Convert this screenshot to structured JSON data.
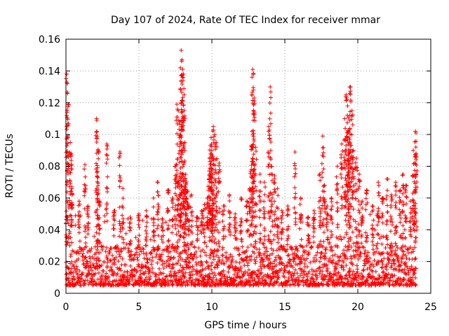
{
  "chart_data": {
    "type": "scatter",
    "title": "Day 107 of 2024, Rate Of TEC Index for receiver mmar",
    "xlabel": "GPS time / hours",
    "ylabel": "ROTI / TECUs",
    "xlim": [
      0,
      25
    ],
    "ylim": [
      0,
      0.16
    ],
    "x_ticks": [
      0,
      5,
      10,
      15,
      20,
      25
    ],
    "x_tick_labels": [
      "0",
      "5",
      "10",
      "15",
      "20",
      "25"
    ],
    "y_ticks": [
      0,
      0.02,
      0.04,
      0.06,
      0.08,
      0.1,
      0.12,
      0.14,
      0.16
    ],
    "y_tick_labels": [
      "0",
      "0.02",
      "0.04",
      "0.06",
      "0.08",
      "0.1",
      "0.12",
      "0.14",
      "0.16"
    ],
    "grid": true,
    "marker": "+",
    "series": [
      {
        "name": "ROTI",
        "color": "#ff0000",
        "x": [
          0.05,
          0.1,
          0.15,
          0.3,
          0.35,
          0.4,
          0.9,
          1.3,
          1.5,
          2.1,
          2.15,
          2.2,
          2.3,
          2.8,
          3.3,
          3.7,
          3.9,
          4.4,
          5.0,
          5.5,
          6.0,
          6.3,
          6.6,
          7.0,
          7.3,
          7.5,
          7.6,
          7.7,
          7.8,
          7.85,
          7.9,
          7.95,
          8.0,
          8.05,
          8.1,
          8.15,
          8.2,
          8.3,
          8.4,
          8.6,
          9.0,
          9.3,
          9.5,
          9.7,
          9.8,
          9.85,
          9.9,
          9.95,
          10.0,
          10.05,
          10.1,
          10.2,
          10.3,
          10.5,
          10.8,
          11.2,
          11.6,
          12.0,
          12.4,
          12.6,
          12.7,
          12.75,
          12.8,
          12.85,
          12.9,
          13.0,
          13.3,
          13.6,
          13.9,
          14.0,
          14.1,
          14.3,
          14.5,
          14.8,
          15.2,
          15.7,
          16.1,
          16.6,
          17.0,
          17.4,
          17.6,
          17.7,
          17.9,
          18.2,
          18.6,
          18.9,
          19.1,
          19.2,
          19.3,
          19.35,
          19.4,
          19.45,
          19.5,
          19.6,
          19.7,
          19.9,
          20.1,
          20.3,
          20.6,
          21.0,
          21.4,
          21.7,
          22.0,
          22.3,
          22.6,
          22.9,
          23.1,
          23.3,
          23.6,
          23.8,
          23.9,
          23.95,
          24.0
        ],
        "y": [
          0.138,
          0.132,
          0.119,
          0.095,
          0.088,
          0.067,
          0.058,
          0.081,
          0.055,
          0.11,
          0.099,
          0.09,
          0.058,
          0.094,
          0.052,
          0.089,
          0.066,
          0.048,
          0.05,
          0.052,
          0.06,
          0.07,
          0.047,
          0.065,
          0.06,
          0.08,
          0.119,
          0.115,
          0.108,
          0.1,
          0.153,
          0.147,
          0.141,
          0.138,
          0.125,
          0.09,
          0.075,
          0.065,
          0.055,
          0.062,
          0.048,
          0.052,
          0.056,
          0.06,
          0.072,
          0.085,
          0.093,
          0.098,
          0.09,
          0.078,
          0.105,
          0.1,
          0.095,
          0.082,
          0.055,
          0.062,
          0.05,
          0.06,
          0.058,
          0.066,
          0.078,
          0.102,
          0.141,
          0.128,
          0.123,
          0.092,
          0.075,
          0.07,
          0.105,
          0.13,
          0.08,
          0.074,
          0.066,
          0.052,
          0.055,
          0.089,
          0.06,
          0.048,
          0.052,
          0.075,
          0.099,
          0.068,
          0.055,
          0.06,
          0.08,
          0.094,
          0.11,
          0.125,
          0.118,
          0.102,
          0.095,
          0.112,
          0.13,
          0.115,
          0.09,
          0.085,
          0.075,
          0.058,
          0.065,
          0.055,
          0.07,
          0.06,
          0.072,
          0.062,
          0.07,
          0.065,
          0.075,
          0.068,
          0.058,
          0.09,
          0.082,
          0.102,
          0.088
        ],
        "baseline": {
          "description": "Dense band of points across 0-24 h",
          "typical_low": 0.005,
          "typical_high": 0.03,
          "bursts_up_to": 0.05
        }
      }
    ]
  }
}
